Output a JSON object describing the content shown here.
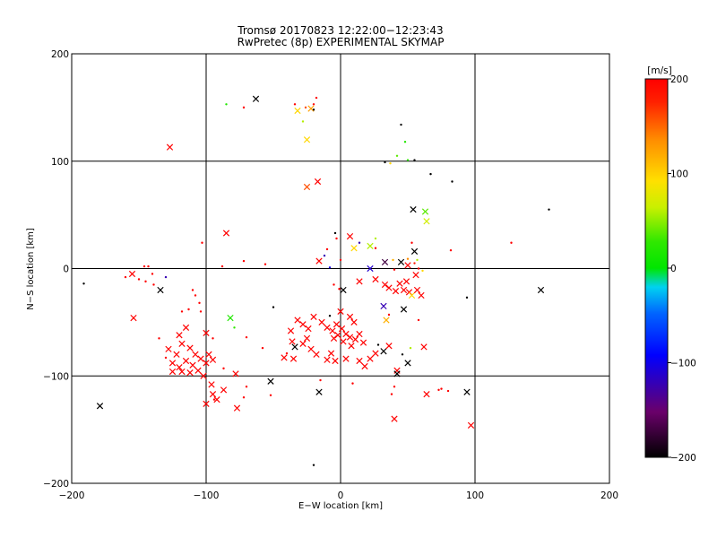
{
  "chart_data": {
    "type": "scatter",
    "title": "Tromsø 20170823 12:22:00−12:23:43",
    "subtitle": "RwPretec (8p) EXPERIMENTAL SKYMAP",
    "xlabel": "E−W location [km]",
    "ylabel": "N−S location [km]",
    "xlim": [
      -200,
      200
    ],
    "ylim": [
      -200,
      200
    ],
    "xticks": [
      -200,
      -100,
      0,
      100,
      200
    ],
    "yticks": [
      -200,
      -100,
      0,
      100,
      200
    ],
    "xtick_labels": [
      "−200",
      "−100",
      "0",
      "100",
      "200"
    ],
    "ytick_labels": [
      "−200",
      "−100",
      "0",
      "100",
      "200"
    ],
    "grid": true,
    "colorbar": {
      "label": "[m/s]",
      "range": [
        -200,
        200
      ],
      "ticks": [
        200,
        100,
        0,
        -100,
        -200
      ],
      "tick_labels": [
        "200",
        "100",
        "0",
        "−100",
        "−200"
      ],
      "colormap": "rainbow (black-purple-blue-cyan-green-yellow-orange-red)"
    },
    "marker_legend": "x = large meteor echo, dot = small meteor echo",
    "points": [
      {
        "x": -127,
        "y": 113,
        "v": 200,
        "m": "x"
      },
      {
        "x": -85,
        "y": 153,
        "v": 20,
        "m": "d"
      },
      {
        "x": -63,
        "y": 158,
        "v": -200,
        "m": "x"
      },
      {
        "x": -72,
        "y": 150,
        "v": 200,
        "m": "d"
      },
      {
        "x": -34,
        "y": 153,
        "v": 200,
        "m": "d"
      },
      {
        "x": -32,
        "y": 147,
        "v": 100,
        "m": "x"
      },
      {
        "x": -26,
        "y": 150,
        "v": 160,
        "m": "d"
      },
      {
        "x": -22,
        "y": 149,
        "v": 130,
        "m": "x"
      },
      {
        "x": -20,
        "y": 153,
        "v": 200,
        "m": "d"
      },
      {
        "x": -18,
        "y": 159,
        "v": 200,
        "m": "d"
      },
      {
        "x": -28,
        "y": 137,
        "v": 60,
        "m": "d"
      },
      {
        "x": -25,
        "y": 120,
        "v": 100,
        "m": "x"
      },
      {
        "x": -20,
        "y": 148,
        "v": -200,
        "m": "d"
      },
      {
        "x": 45,
        "y": 134,
        "v": -200,
        "m": "d"
      },
      {
        "x": 48,
        "y": 118,
        "v": 20,
        "m": "d"
      },
      {
        "x": 42,
        "y": 105,
        "v": 40,
        "m": "d"
      },
      {
        "x": 50,
        "y": 101,
        "v": 30,
        "m": "d"
      },
      {
        "x": 55,
        "y": 101,
        "v": -200,
        "m": "d"
      },
      {
        "x": 37,
        "y": 98,
        "v": 100,
        "m": "d"
      },
      {
        "x": 33,
        "y": 99,
        "v": -200,
        "m": "d"
      },
      {
        "x": 67,
        "y": 88,
        "v": -200,
        "m": "d"
      },
      {
        "x": 83,
        "y": 81,
        "v": -200,
        "m": "d"
      },
      {
        "x": -25,
        "y": 76,
        "v": 160,
        "m": "x"
      },
      {
        "x": -17,
        "y": 81,
        "v": 200,
        "m": "x"
      },
      {
        "x": 54,
        "y": 55,
        "v": -200,
        "m": "x"
      },
      {
        "x": 63,
        "y": 53,
        "v": 40,
        "m": "x"
      },
      {
        "x": 64,
        "y": 44,
        "v": 70,
        "m": "x"
      },
      {
        "x": 155,
        "y": 55,
        "v": -200,
        "m": "d"
      },
      {
        "x": -4,
        "y": 33,
        "v": -200,
        "m": "d"
      },
      {
        "x": -85,
        "y": 33,
        "v": 200,
        "m": "x"
      },
      {
        "x": -103,
        "y": 24,
        "v": 200,
        "m": "d"
      },
      {
        "x": -3,
        "y": 28,
        "v": 200,
        "m": "d"
      },
      {
        "x": 7,
        "y": 30,
        "v": 200,
        "m": "x"
      },
      {
        "x": 14,
        "y": 24,
        "v": -120,
        "m": "d"
      },
      {
        "x": 26,
        "y": 28,
        "v": 60,
        "m": "d"
      },
      {
        "x": 127,
        "y": 24,
        "v": 200,
        "m": "d"
      },
      {
        "x": -10,
        "y": 18,
        "v": 200,
        "m": "d"
      },
      {
        "x": 10,
        "y": 19,
        "v": 100,
        "m": "x"
      },
      {
        "x": 22,
        "y": 21,
        "v": 60,
        "m": "x"
      },
      {
        "x": 26,
        "y": 19,
        "v": 200,
        "m": "d"
      },
      {
        "x": 55,
        "y": 16,
        "v": -200,
        "m": "x"
      },
      {
        "x": 53,
        "y": 24,
        "v": 200,
        "m": "d"
      },
      {
        "x": 82,
        "y": 17,
        "v": 200,
        "m": "d"
      },
      {
        "x": -12,
        "y": 12,
        "v": -120,
        "m": "d"
      },
      {
        "x": -16,
        "y": 7,
        "v": 200,
        "m": "x"
      },
      {
        "x": 0,
        "y": 8,
        "v": 200,
        "m": "d"
      },
      {
        "x": 33,
        "y": 6,
        "v": -170,
        "m": "x"
      },
      {
        "x": 39,
        "y": 8,
        "v": 120,
        "m": "d"
      },
      {
        "x": 45,
        "y": 6,
        "v": -200,
        "m": "x"
      },
      {
        "x": 50,
        "y": 9,
        "v": 140,
        "m": "d"
      },
      {
        "x": 55,
        "y": 5,
        "v": 180,
        "m": "d"
      },
      {
        "x": 57,
        "y": 8,
        "v": 60,
        "m": "d"
      },
      {
        "x": -72,
        "y": 7,
        "v": 200,
        "m": "d"
      },
      {
        "x": -56,
        "y": 4,
        "v": 200,
        "m": "d"
      },
      {
        "x": -88,
        "y": 2,
        "v": 200,
        "m": "d"
      },
      {
        "x": -143,
        "y": 2,
        "v": 200,
        "m": "d"
      },
      {
        "x": -146,
        "y": 2,
        "v": 200,
        "m": "d"
      },
      {
        "x": -8,
        "y": 1,
        "v": -100,
        "m": "d"
      },
      {
        "x": 22,
        "y": 0,
        "v": -110,
        "m": "x"
      },
      {
        "x": 40,
        "y": -1,
        "v": 200,
        "m": "d"
      },
      {
        "x": 50,
        "y": 3,
        "v": 200,
        "m": "x"
      },
      {
        "x": 58,
        "y": 0,
        "v": 200,
        "m": "d"
      },
      {
        "x": -155,
        "y": -5,
        "v": 200,
        "m": "x"
      },
      {
        "x": -160,
        "y": -8,
        "v": 200,
        "m": "d"
      },
      {
        "x": -150,
        "y": -10,
        "v": 200,
        "m": "d"
      },
      {
        "x": -145,
        "y": -12,
        "v": 200,
        "m": "d"
      },
      {
        "x": -140,
        "y": -5,
        "v": 200,
        "m": "d"
      },
      {
        "x": -130,
        "y": -8,
        "v": -120,
        "m": "d"
      },
      {
        "x": -139,
        "y": -15,
        "v": 200,
        "m": "d"
      },
      {
        "x": -134,
        "y": -20,
        "v": -200,
        "m": "x"
      },
      {
        "x": -191,
        "y": -14,
        "v": -200,
        "m": "d"
      },
      {
        "x": -110,
        "y": -20,
        "v": 200,
        "m": "d"
      },
      {
        "x": -5,
        "y": -15,
        "v": 200,
        "m": "d"
      },
      {
        "x": -1,
        "y": -19,
        "v": 200,
        "m": "d"
      },
      {
        "x": 2,
        "y": -20,
        "v": -200,
        "m": "x"
      },
      {
        "x": 14,
        "y": -12,
        "v": 200,
        "m": "x"
      },
      {
        "x": 26,
        "y": -10,
        "v": 200,
        "m": "x"
      },
      {
        "x": 33,
        "y": -15,
        "v": 200,
        "m": "x"
      },
      {
        "x": 36,
        "y": -18,
        "v": 200,
        "m": "x"
      },
      {
        "x": 41,
        "y": -21,
        "v": 200,
        "m": "x"
      },
      {
        "x": 44,
        "y": -14,
        "v": 200,
        "m": "x"
      },
      {
        "x": 47,
        "y": -20,
        "v": 200,
        "m": "x"
      },
      {
        "x": 51,
        "y": -22,
        "v": 200,
        "m": "x"
      },
      {
        "x": 53,
        "y": -25,
        "v": 100,
        "m": "x"
      },
      {
        "x": 57,
        "y": -20,
        "v": 200,
        "m": "x"
      },
      {
        "x": 60,
        "y": -25,
        "v": 200,
        "m": "x"
      },
      {
        "x": 49,
        "y": -12,
        "v": 200,
        "m": "x"
      },
      {
        "x": 56,
        "y": -6,
        "v": 200,
        "m": "x"
      },
      {
        "x": 61,
        "y": -2,
        "v": 100,
        "m": "d"
      },
      {
        "x": 94,
        "y": -27,
        "v": -200,
        "m": "d"
      },
      {
        "x": 149,
        "y": -20,
        "v": -200,
        "m": "x"
      },
      {
        "x": -108,
        "y": -25,
        "v": 200,
        "m": "d"
      },
      {
        "x": -105,
        "y": -32,
        "v": 200,
        "m": "d"
      },
      {
        "x": -113,
        "y": -38,
        "v": 200,
        "m": "d"
      },
      {
        "x": -118,
        "y": -40,
        "v": 200,
        "m": "d"
      },
      {
        "x": -104,
        "y": -40,
        "v": 200,
        "m": "d"
      },
      {
        "x": -154,
        "y": -46,
        "v": 200,
        "m": "x"
      },
      {
        "x": -50,
        "y": -36,
        "v": -200,
        "m": "d"
      },
      {
        "x": -82,
        "y": -46,
        "v": 20,
        "m": "x"
      },
      {
        "x": -79,
        "y": -55,
        "v": 30,
        "m": "d"
      },
      {
        "x": -20,
        "y": -45,
        "v": 200,
        "m": "x"
      },
      {
        "x": -8,
        "y": -44,
        "v": -200,
        "m": "d"
      },
      {
        "x": -14,
        "y": -50,
        "v": 200,
        "m": "x"
      },
      {
        "x": 0,
        "y": -40,
        "v": 200,
        "m": "x"
      },
      {
        "x": 7,
        "y": -45,
        "v": 200,
        "m": "x"
      },
      {
        "x": 10,
        "y": -50,
        "v": 200,
        "m": "x"
      },
      {
        "x": 32,
        "y": -35,
        "v": -120,
        "m": "x"
      },
      {
        "x": 36,
        "y": -43,
        "v": 200,
        "m": "d"
      },
      {
        "x": 34,
        "y": -48,
        "v": 120,
        "m": "x"
      },
      {
        "x": 47,
        "y": -38,
        "v": -200,
        "m": "x"
      },
      {
        "x": 58,
        "y": -48,
        "v": 200,
        "m": "d"
      },
      {
        "x": -32,
        "y": -48,
        "v": 200,
        "m": "x"
      },
      {
        "x": -28,
        "y": -52,
        "v": 200,
        "m": "x"
      },
      {
        "x": -24,
        "y": -56,
        "v": 200,
        "m": "x"
      },
      {
        "x": -37,
        "y": -58,
        "v": 200,
        "m": "x"
      },
      {
        "x": -10,
        "y": -55,
        "v": 200,
        "m": "x"
      },
      {
        "x": -6,
        "y": -58,
        "v": 200,
        "m": "x"
      },
      {
        "x": -3,
        "y": -52,
        "v": 200,
        "m": "x"
      },
      {
        "x": 1,
        "y": -56,
        "v": 200,
        "m": "x"
      },
      {
        "x": 4,
        "y": -61,
        "v": 200,
        "m": "x"
      },
      {
        "x": 7,
        "y": -64,
        "v": 200,
        "m": "x"
      },
      {
        "x": 11,
        "y": -66,
        "v": 200,
        "m": "x"
      },
      {
        "x": 14,
        "y": -61,
        "v": 200,
        "m": "x"
      },
      {
        "x": 17,
        "y": -69,
        "v": 200,
        "m": "x"
      },
      {
        "x": -2,
        "y": -62,
        "v": 200,
        "m": "x"
      },
      {
        "x": -5,
        "y": -65,
        "v": 200,
        "m": "x"
      },
      {
        "x": 2,
        "y": -68,
        "v": 200,
        "m": "x"
      },
      {
        "x": 8,
        "y": -72,
        "v": 200,
        "m": "x"
      },
      {
        "x": -25,
        "y": -65,
        "v": 200,
        "m": "x"
      },
      {
        "x": -28,
        "y": -70,
        "v": 200,
        "m": "x"
      },
      {
        "x": -36,
        "y": -68,
        "v": 200,
        "m": "x"
      },
      {
        "x": -34,
        "y": -73,
        "v": -200,
        "m": "x"
      },
      {
        "x": -40,
        "y": -79,
        "v": 200,
        "m": "d"
      },
      {
        "x": -42,
        "y": -83,
        "v": 200,
        "m": "x"
      },
      {
        "x": -35,
        "y": -84,
        "v": 200,
        "m": "x"
      },
      {
        "x": -22,
        "y": -75,
        "v": 200,
        "m": "x"
      },
      {
        "x": -18,
        "y": -80,
        "v": 200,
        "m": "x"
      },
      {
        "x": -10,
        "y": -85,
        "v": 200,
        "m": "x"
      },
      {
        "x": -7,
        "y": -79,
        "v": 200,
        "m": "x"
      },
      {
        "x": -4,
        "y": -86,
        "v": 200,
        "m": "x"
      },
      {
        "x": 4,
        "y": -84,
        "v": 200,
        "m": "x"
      },
      {
        "x": 14,
        "y": -86,
        "v": 200,
        "m": "x"
      },
      {
        "x": 18,
        "y": -91,
        "v": 200,
        "m": "x"
      },
      {
        "x": 22,
        "y": -84,
        "v": 200,
        "m": "x"
      },
      {
        "x": 26,
        "y": -79,
        "v": 200,
        "m": "x"
      },
      {
        "x": 28,
        "y": -71,
        "v": -200,
        "m": "d"
      },
      {
        "x": 32,
        "y": -77,
        "v": -200,
        "m": "x"
      },
      {
        "x": 36,
        "y": -72,
        "v": 200,
        "m": "x"
      },
      {
        "x": 46,
        "y": -80,
        "v": -200,
        "m": "d"
      },
      {
        "x": 52,
        "y": -74,
        "v": 60,
        "m": "d"
      },
      {
        "x": 62,
        "y": -73,
        "v": 200,
        "m": "x"
      },
      {
        "x": 50,
        "y": -88,
        "v": -200,
        "m": "x"
      },
      {
        "x": 42,
        "y": -95,
        "v": 200,
        "m": "x"
      },
      {
        "x": 42,
        "y": -98,
        "v": -200,
        "m": "x"
      },
      {
        "x": -58,
        "y": -74,
        "v": 200,
        "m": "d"
      },
      {
        "x": -70,
        "y": -64,
        "v": 200,
        "m": "d"
      },
      {
        "x": -95,
        "y": -65,
        "v": 200,
        "m": "d"
      },
      {
        "x": -100,
        "y": -60,
        "v": 200,
        "m": "x"
      },
      {
        "x": -115,
        "y": -55,
        "v": 200,
        "m": "x"
      },
      {
        "x": -120,
        "y": -62,
        "v": 200,
        "m": "x"
      },
      {
        "x": -118,
        "y": -70,
        "v": 200,
        "m": "x"
      },
      {
        "x": -112,
        "y": -74,
        "v": 200,
        "m": "x"
      },
      {
        "x": -108,
        "y": -80,
        "v": 200,
        "m": "x"
      },
      {
        "x": -104,
        "y": -84,
        "v": 200,
        "m": "x"
      },
      {
        "x": -98,
        "y": -80,
        "v": 200,
        "m": "x"
      },
      {
        "x": -95,
        "y": -85,
        "v": 200,
        "m": "x"
      },
      {
        "x": -100,
        "y": -88,
        "v": 200,
        "m": "x"
      },
      {
        "x": -110,
        "y": -90,
        "v": 200,
        "m": "x"
      },
      {
        "x": -115,
        "y": -86,
        "v": 200,
        "m": "x"
      },
      {
        "x": -120,
        "y": -92,
        "v": 200,
        "m": "x"
      },
      {
        "x": -125,
        "y": -88,
        "v": 200,
        "m": "x"
      },
      {
        "x": -122,
        "y": -80,
        "v": 200,
        "m": "x"
      },
      {
        "x": -128,
        "y": -75,
        "v": 200,
        "m": "x"
      },
      {
        "x": -130,
        "y": -83,
        "v": 200,
        "m": "d"
      },
      {
        "x": -135,
        "y": -65,
        "v": 200,
        "m": "d"
      },
      {
        "x": -112,
        "y": -97,
        "v": 200,
        "m": "x"
      },
      {
        "x": -106,
        "y": -95,
        "v": 200,
        "m": "x"
      },
      {
        "x": -118,
        "y": -96,
        "v": 200,
        "m": "x"
      },
      {
        "x": -125,
        "y": -96,
        "v": 200,
        "m": "x"
      },
      {
        "x": -102,
        "y": -100,
        "v": 200,
        "m": "x"
      },
      {
        "x": -87,
        "y": -93,
        "v": 200,
        "m": "d"
      },
      {
        "x": -78,
        "y": -98,
        "v": 200,
        "m": "x"
      },
      {
        "x": -87,
        "y": -113,
        "v": 200,
        "m": "x"
      },
      {
        "x": -95,
        "y": -117,
        "v": 200,
        "m": "x"
      },
      {
        "x": -96,
        "y": -108,
        "v": 200,
        "m": "x"
      },
      {
        "x": -92,
        "y": -122,
        "v": 200,
        "m": "x"
      },
      {
        "x": -70,
        "y": -110,
        "v": 200,
        "m": "d"
      },
      {
        "x": -72,
        "y": -120,
        "v": 200,
        "m": "d"
      },
      {
        "x": -52,
        "y": -105,
        "v": -200,
        "m": "x"
      },
      {
        "x": -100,
        "y": -126,
        "v": 200,
        "m": "x"
      },
      {
        "x": -94,
        "y": -122,
        "v": 200,
        "m": "d"
      },
      {
        "x": -77,
        "y": -130,
        "v": 200,
        "m": "x"
      },
      {
        "x": -52,
        "y": -118,
        "v": 200,
        "m": "d"
      },
      {
        "x": -16,
        "y": -115,
        "v": -200,
        "m": "x"
      },
      {
        "x": -15,
        "y": -104,
        "v": 200,
        "m": "d"
      },
      {
        "x": 9,
        "y": -107,
        "v": 200,
        "m": "d"
      },
      {
        "x": 38,
        "y": -117,
        "v": 200,
        "m": "d"
      },
      {
        "x": 40,
        "y": -110,
        "v": 200,
        "m": "d"
      },
      {
        "x": 64,
        "y": -117,
        "v": 200,
        "m": "x"
      },
      {
        "x": 73,
        "y": -113,
        "v": 200,
        "m": "d"
      },
      {
        "x": 75,
        "y": -112,
        "v": 200,
        "m": "d"
      },
      {
        "x": 80,
        "y": -114,
        "v": 200,
        "m": "d"
      },
      {
        "x": 94,
        "y": -115,
        "v": -200,
        "m": "x"
      },
      {
        "x": 40,
        "y": -140,
        "v": 200,
        "m": "x"
      },
      {
        "x": 97,
        "y": -146,
        "v": 200,
        "m": "x"
      },
      {
        "x": -179,
        "y": -128,
        "v": -200,
        "m": "x"
      },
      {
        "x": -20,
        "y": -183,
        "v": -200,
        "m": "d"
      }
    ]
  }
}
